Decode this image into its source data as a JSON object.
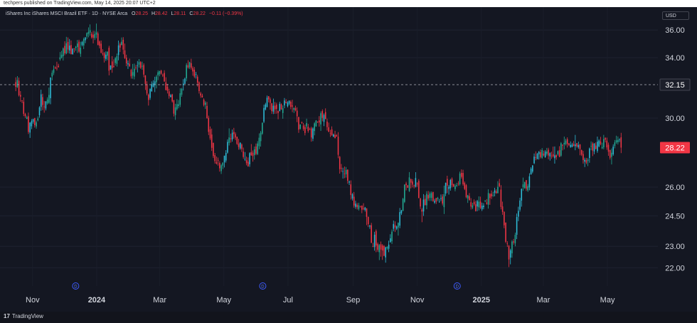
{
  "header": {
    "publisher": "techpers published on TradingView.com, May 14, 2025 20:07 UTC+2"
  },
  "legend": {
    "title": "iShares Inc iShares MSCI Brazil ETF · 1D · NYSE Arca",
    "o_label": "O",
    "o_value": "28.25",
    "h_label": "H",
    "h_value": "28.42",
    "l_label": "L",
    "l_value": "28.11",
    "c_label": "C",
    "c_value": "28.22",
    "change": "−0.11 (−0.39%)"
  },
  "currency": "USD",
  "footer": {
    "brand": "TradingView"
  },
  "colors": {
    "up": "#22ab94",
    "up_bright": "#2ebdd8",
    "down": "#f23645",
    "bg": "#141722",
    "text": "#d1d4dc"
  },
  "chart_data": {
    "type": "candlestick",
    "title": "iShares Inc iShares MSCI Brazil ETF · 1D · NYSE Arca",
    "y_ticks": [
      "36.00",
      "34.00",
      "32.15",
      "30.00",
      "28.22",
      "26.00",
      "24.50",
      "23.00",
      "22.00"
    ],
    "y_tick_values": [
      36.0,
      34.0,
      32.15,
      30.0,
      28.22,
      26.0,
      24.5,
      23.0,
      22.0
    ],
    "y_scale": "log",
    "ylim": [
      21.5,
      37.2
    ],
    "x_labels": [
      "Nov",
      "2024",
      "Mar",
      "May",
      "Jul",
      "Sep",
      "Nov",
      "2025",
      "Mar",
      "May"
    ],
    "x_label_days": [
      16,
      77,
      137,
      198,
      259,
      321,
      382,
      443,
      502,
      563
    ],
    "x_range_days": [
      -15,
      611
    ],
    "dividend_markers": {
      "label": "D",
      "days": [
        57,
        235,
        420
      ]
    },
    "reference_line": {
      "value": 32.15,
      "label": "32.15"
    },
    "last_price": {
      "value": 28.22,
      "label": "28.22"
    },
    "path_days": [
      0,
      10,
      12,
      22,
      30,
      40,
      48,
      56,
      65,
      70,
      80,
      90,
      100,
      110,
      120,
      126,
      136,
      150,
      160,
      172,
      180,
      190,
      198,
      210,
      222,
      229,
      240,
      252,
      266,
      280,
      292,
      300,
      312,
      322,
      334,
      348,
      358,
      370,
      381,
      386,
      392,
      396,
      402,
      408,
      416,
      424,
      436,
      446,
      460,
      470,
      478,
      486,
      495,
      508,
      513,
      520,
      527,
      538,
      548,
      555,
      565,
      576
    ],
    "path_close": [
      31.5,
      30.2,
      29.5,
      30.2,
      30.5,
      32.3,
      34.3,
      34.8,
      35.4,
      35.7,
      34.0,
      33.6,
      34.5,
      33.3,
      33.0,
      32.4,
      33.2,
      30.2,
      33.2,
      32.2,
      30.6,
      27.6,
      27.8,
      28.7,
      28.0,
      27.9,
      31.4,
      30.6,
      30.8,
      28.8,
      29.5,
      28.8,
      26.8,
      25.2,
      24.7,
      22.2,
      23.6,
      25.2,
      26.3,
      25.0,
      25.3,
      24.6,
      24.8,
      26.2,
      26.0,
      26.5,
      24.9,
      25.2,
      26.0,
      23.1,
      24.6,
      26.2,
      28.12,
      28.33,
      28.22,
      28.3,
      28.2,
      28.0,
      27.8,
      28.0,
      28.1,
      28.22
    ],
    "candle_count": 384,
    "seed": 7,
    "volatility": 0.011
  }
}
